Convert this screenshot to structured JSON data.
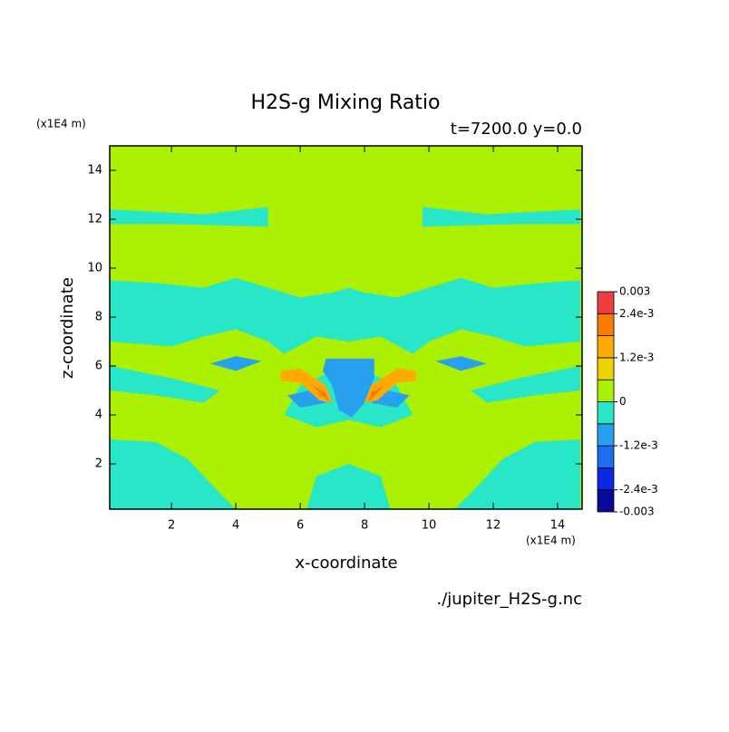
{
  "chart_data": {
    "type": "contour",
    "title": "H2S-g Mixing Ratio",
    "subtitle": "t=7200.0 y=0.0",
    "x_label": "x-coordinate",
    "y_label": "z-coordinate",
    "x_unit": "(x1E4 m)",
    "y_unit": "(x1E4 m)",
    "source": "./jupiter_H2S-g.nc",
    "xlim": [
      0.08,
      14.76
    ],
    "ylim": [
      0.15,
      15
    ],
    "xticks": [
      2,
      4,
      6,
      8,
      10,
      12,
      14
    ],
    "yticks": [
      2,
      4,
      6,
      8,
      10,
      12,
      14
    ],
    "levels": [
      -0.003,
      -0.0024,
      -0.0018,
      -0.0012,
      -0.0006,
      0,
      0.0006,
      0.0012,
      0.0018,
      0.0024,
      0.003
    ],
    "colors": [
      "#0a0a9a",
      "#0a28e6",
      "#1e6ef0",
      "#28a0f0",
      "#28e6c8",
      "#aaf000",
      "#f0d200",
      "#ffaa00",
      "#ff7800",
      "#f03c3c"
    ],
    "colorbar_ticks": [
      0.003,
      {
        "value": 0.0024,
        "label": "2.4e-3"
      },
      {
        "value": 0.0012,
        "label": "1.2e-3"
      },
      0,
      {
        "value": -0.0012,
        "label": "-1.2e-3"
      },
      {
        "value": -0.0024,
        "label": "-2.4e-3"
      },
      -0.003
    ],
    "background_value": 0.0003,
    "zones": [
      {
        "value": -0.0003,
        "x": [
          0.1,
          0.1,
          1.5,
          2.5,
          3,
          3.5,
          4
        ],
        "z": [
          0.15,
          3,
          2.9,
          2.2,
          1.5,
          0.8,
          0.15
        ]
      },
      {
        "value": -0.0003,
        "x": [
          14.7,
          14.7,
          13.3,
          12.3,
          11.8,
          11.3,
          10.8
        ],
        "z": [
          0.15,
          3,
          2.9,
          2.2,
          1.5,
          0.8,
          0.15
        ]
      },
      {
        "value": -0.0003,
        "x": [
          0.1,
          1.5,
          3,
          4,
          5,
          6,
          7,
          7.5,
          8,
          9,
          10,
          11,
          12,
          13.5,
          14.7,
          14.7,
          13,
          12,
          11,
          10,
          9.5,
          8.5,
          7.5,
          6.5,
          5.5,
          5,
          4,
          3,
          2,
          0.1
        ],
        "z": [
          9.5,
          9.4,
          9.2,
          9.6,
          9.2,
          8.8,
          9.0,
          9.2,
          9.0,
          8.8,
          9.2,
          9.6,
          9.2,
          9.4,
          9.5,
          7,
          6.8,
          7.2,
          7.5,
          7.0,
          6.5,
          7.2,
          7.0,
          7.2,
          6.5,
          7.0,
          7.5,
          7.2,
          6.8,
          7
        ]
      },
      {
        "value": -0.0003,
        "x": [
          5.5,
          6,
          7,
          8,
          9,
          9.5,
          8.5,
          7.5,
          6.5
        ],
        "z": [
          4,
          5.2,
          5.8,
          5.8,
          5.2,
          4,
          3.5,
          3.8,
          3.5
        ]
      },
      {
        "value": -0.0003,
        "x": [
          6.2,
          6.5,
          7.5,
          8.5,
          8.8
        ],
        "z": [
          0.15,
          1.5,
          2,
          1.5,
          0.15
        ]
      },
      {
        "value": -0.0003,
        "x": [
          0.1,
          2,
          3.5,
          3,
          1.5,
          0.1
        ],
        "z": [
          6,
          5.5,
          5,
          4.5,
          4.8,
          5
        ]
      },
      {
        "value": -0.0003,
        "x": [
          14.7,
          12.8,
          11.3,
          11.8,
          13.3,
          14.7
        ],
        "z": [
          6,
          5.5,
          5,
          4.5,
          4.8,
          5
        ]
      },
      {
        "value": -0.0003,
        "x": [
          0.1,
          3,
          5,
          5,
          2,
          0.1
        ],
        "z": [
          12.4,
          12.2,
          12.5,
          11.7,
          11.8,
          11.8
        ]
      },
      {
        "value": -0.0003,
        "x": [
          14.7,
          11.8,
          9.8,
          9.8,
          12.8,
          14.7
        ],
        "z": [
          12.4,
          12.2,
          12.5,
          11.7,
          11.8,
          11.8
        ]
      },
      {
        "value": -0.0009,
        "x": [
          6.8,
          8.3,
          8.3,
          8,
          7.6,
          7.2,
          7,
          6.7
        ],
        "z": [
          6.3,
          6.3,
          5.5,
          4.5,
          3.9,
          4.2,
          5.2,
          5.8
        ]
      },
      {
        "value": -0.0009,
        "x": [
          3.2,
          4,
          4.8,
          4
        ],
        "z": [
          6.1,
          6.4,
          6.2,
          5.8
        ]
      },
      {
        "value": -0.0009,
        "x": [
          10.2,
          11,
          11.8,
          11
        ],
        "z": [
          6.2,
          6.4,
          6.1,
          5.8
        ]
      },
      {
        "value": -0.0009,
        "x": [
          5.6,
          6.3,
          6.8,
          6
        ],
        "z": [
          4.8,
          5,
          4.5,
          4.3
        ]
      },
      {
        "value": -0.0009,
        "x": [
          8.2,
          8.7,
          9.4,
          9
        ],
        "z": [
          4.5,
          5,
          4.8,
          4.3
        ]
      },
      {
        "value": 0.0015,
        "x": [
          5.4,
          6,
          6.8,
          7,
          6.6,
          6,
          5.4
        ],
        "z": [
          5.8,
          5.9,
          5.2,
          4.5,
          4.6,
          5.3,
          5.4
        ]
      },
      {
        "value": 0.0015,
        "x": [
          9.6,
          9,
          8.2,
          8,
          8.4,
          9,
          9.6
        ],
        "z": [
          5.8,
          5.9,
          5.2,
          4.5,
          4.6,
          5.3,
          5.4
        ]
      },
      {
        "value": 0.0021,
        "x": [
          6.4,
          6.8,
          6.9,
          6.6
        ],
        "z": [
          5.2,
          4.9,
          4.5,
          4.9
        ]
      },
      {
        "value": 0.0021,
        "x": [
          8.6,
          8.2,
          8.1,
          8.4
        ],
        "z": [
          5.2,
          4.9,
          4.5,
          4.9
        ]
      }
    ]
  }
}
